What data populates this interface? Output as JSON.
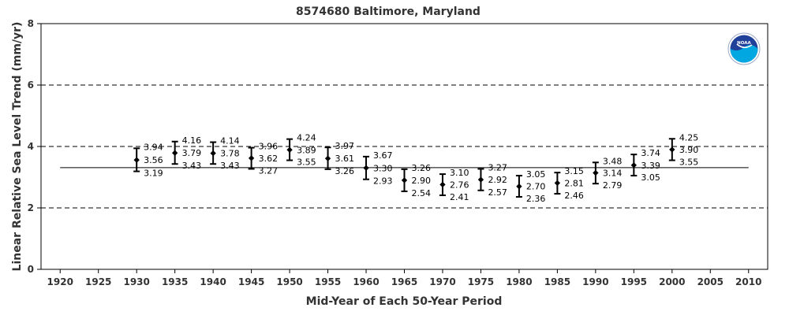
{
  "chart_data": {
    "type": "scatter",
    "title": "8574680 Baltimore, Maryland",
    "xlabel": "Mid-Year of Each 50-Year Period",
    "ylabel": "Linear Relative Sea Level Trend (mm/yr)",
    "xlim": [
      1917.5,
      2012.5
    ],
    "ylim": [
      0,
      8
    ],
    "x_ticks": [
      "1920",
      "1925",
      "1930",
      "1935",
      "1940",
      "1945",
      "1950",
      "1955",
      "1960",
      "1965",
      "1970",
      "1975",
      "1980",
      "1985",
      "1990",
      "1995",
      "2000",
      "2005",
      "2010"
    ],
    "y_ticks": [
      "0",
      "2",
      "4",
      "6",
      "8"
    ],
    "gridlines_y": [
      2,
      4,
      6
    ],
    "grid_style": "dashed",
    "reference_line": {
      "y": 3.31,
      "x_start": 1920,
      "x_end": 2010
    },
    "logo": "NOAA",
    "points": [
      {
        "x": 1930,
        "upper": "3.94",
        "mid": "3.56",
        "lower": "3.19"
      },
      {
        "x": 1935,
        "upper": "4.16",
        "mid": "3.79",
        "lower": "3.43"
      },
      {
        "x": 1940,
        "upper": "4.14",
        "mid": "3.78",
        "lower": "3.43"
      },
      {
        "x": 1945,
        "upper": "3.96",
        "mid": "3.62",
        "lower": "3.27"
      },
      {
        "x": 1950,
        "upper": "4.24",
        "mid": "3.89",
        "lower": "3.55"
      },
      {
        "x": 1955,
        "upper": "3.97",
        "mid": "3.61",
        "lower": "3.26"
      },
      {
        "x": 1960,
        "upper": "3.67",
        "mid": "3.30",
        "lower": "2.93"
      },
      {
        "x": 1965,
        "upper": "3.26",
        "mid": "2.90",
        "lower": "2.54"
      },
      {
        "x": 1970,
        "upper": "3.10",
        "mid": "2.76",
        "lower": "2.41"
      },
      {
        "x": 1975,
        "upper": "3.27",
        "mid": "2.92",
        "lower": "2.57"
      },
      {
        "x": 1980,
        "upper": "3.05",
        "mid": "2.70",
        "lower": "2.36"
      },
      {
        "x": 1985,
        "upper": "3.15",
        "mid": "2.81",
        "lower": "2.46"
      },
      {
        "x": 1990,
        "upper": "3.48",
        "mid": "3.14",
        "lower": "2.79"
      },
      {
        "x": 1995,
        "upper": "3.74",
        "mid": "3.39",
        "lower": "3.05"
      },
      {
        "x": 2000,
        "upper": "4.25",
        "mid": "3.90",
        "lower": "3.55"
      }
    ]
  }
}
